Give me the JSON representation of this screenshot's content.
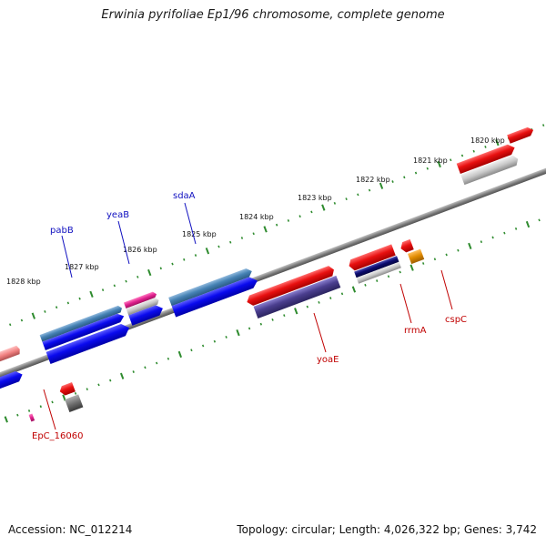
{
  "title": "Erwinia pyrifoliae Ep1/96 chromosome, complete genome",
  "footer": {
    "accession": "Accession: NC_012214",
    "summary": "Topology: circular; Length: 4,026,322 bp; Genes: 3,742"
  },
  "ruler": {
    "labels": [
      "1820 kbp",
      "1821 kbp",
      "1822 kbp",
      "1823 kbp",
      "1824 kbp",
      "1825 kbp",
      "1826 kbp",
      "1827 kbp",
      "1828 kbp"
    ]
  },
  "genes": {
    "forward": [
      "pabB",
      "yeaB",
      "sdaA"
    ],
    "reverse": [
      "EpC_16060",
      "yoaE",
      "rrmA",
      "cspC"
    ]
  },
  "colors": {
    "forward_label": "#1010c0",
    "reverse_label": "#c00000",
    "backbone": "#808080",
    "tick": "#2e8b2e",
    "red_gene": "#e81010",
    "blue_gene": "#0a0aee",
    "steel_gene": "#4682b4",
    "slate_gene": "#4b3f8f",
    "navy_gene": "#0b0b6e",
    "magenta_gene": "#e0208e",
    "orange_gene": "#e08a00",
    "grey_gene": "#9a9a9a"
  }
}
